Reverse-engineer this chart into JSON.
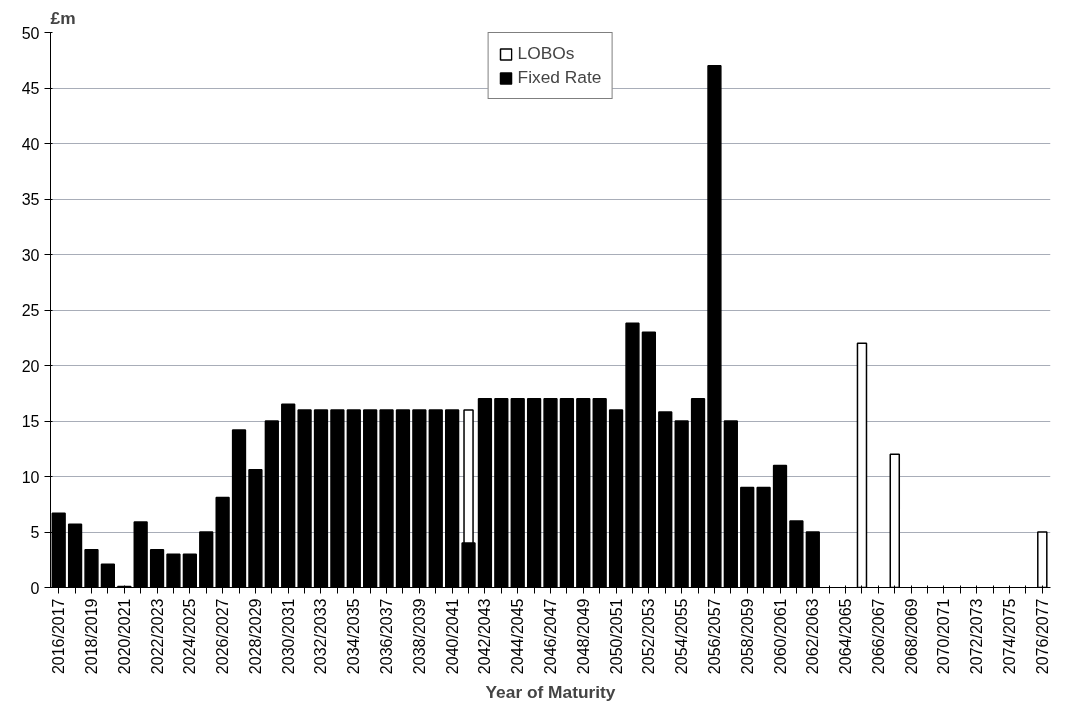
{
  "chart_data": {
    "type": "bar",
    "stacked": true,
    "ylabel": "£m",
    "xlabel": "Year of Maturity",
    "categories": [
      "2016/2017",
      null,
      "2018/2019",
      null,
      "2020/2021",
      null,
      "2022/2023",
      null,
      "2024/2025",
      null,
      "2026/2027",
      null,
      "2028/2029",
      null,
      "2030/2031",
      null,
      "2032/2033",
      null,
      "2034/2035",
      null,
      "2036/2037",
      null,
      "2038/2039",
      null,
      "2040/2041",
      null,
      "2042/2043",
      null,
      "2044/2045",
      null,
      "2046/2047",
      null,
      "2048/2049",
      null,
      "2050/2051",
      null,
      "2052/2053",
      null,
      "2054/2055",
      null,
      "2056/2057",
      null,
      "2058/2059",
      null,
      "2060/2061",
      null,
      "2062/2063",
      null,
      "2064/2065",
      null,
      "2066/2067",
      null,
      "2068/2069",
      null,
      "2070/2071",
      null,
      "2072/2073",
      null,
      "2074/2075",
      null,
      "2076/2077"
    ],
    "series": [
      {
        "name": "Fixed Rate",
        "color": "#000000",
        "values": [
          6.7,
          5.7,
          3.4,
          2.1,
          0.1,
          5.9,
          3.4,
          3.0,
          3.0,
          5.0,
          8.1,
          14.2,
          10.6,
          15.0,
          16.5,
          16,
          16,
          16,
          16,
          16,
          16,
          16,
          16,
          16,
          16,
          4,
          17,
          17,
          17,
          17,
          17,
          17,
          17,
          17,
          16,
          23.8,
          23,
          15.8,
          15,
          17,
          47,
          15,
          9,
          9,
          11,
          6,
          5,
          null,
          null,
          null,
          null,
          null,
          null,
          null,
          null,
          null,
          null,
          null,
          null,
          null,
          null
        ]
      },
      {
        "name": "LOBOs",
        "color": "#ffffff",
        "values": [
          null,
          null,
          null,
          null,
          null,
          null,
          null,
          null,
          null,
          null,
          null,
          null,
          null,
          null,
          null,
          null,
          null,
          null,
          null,
          null,
          null,
          null,
          null,
          null,
          null,
          12,
          null,
          null,
          null,
          null,
          null,
          null,
          null,
          null,
          null,
          null,
          null,
          null,
          null,
          null,
          null,
          null,
          null,
          null,
          null,
          null,
          null,
          null,
          null,
          22,
          null,
          12,
          null,
          null,
          null,
          null,
          null,
          null,
          null,
          null,
          5
        ]
      }
    ],
    "ylim": [
      0,
      50
    ],
    "yticks": [
      0,
      5,
      10,
      15,
      20,
      25,
      30,
      35,
      40,
      45,
      50
    ],
    "grid": "y",
    "legend": "top"
  }
}
